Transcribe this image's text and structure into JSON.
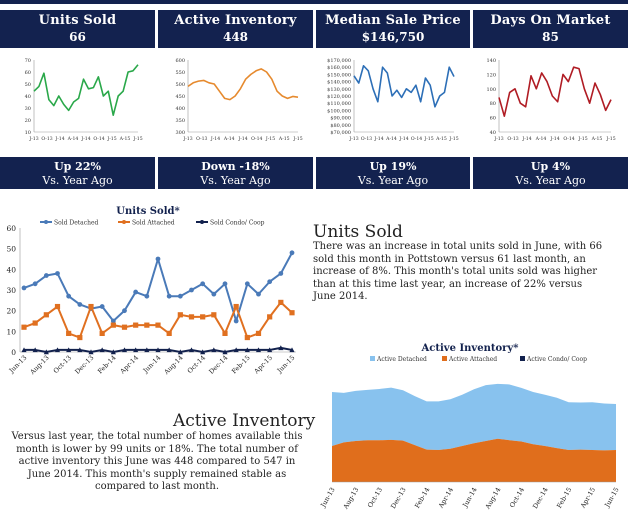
{
  "stats": [
    {
      "title": "Units Sold",
      "value": "66",
      "change": "Up  22%",
      "vs": "Vs. Year Ago"
    },
    {
      "title": "Active Inventory",
      "value": "448",
      "change": "Down  -18%",
      "vs": "Vs. Year Ago"
    },
    {
      "title": "Median Sale Price",
      "value": "$146,750",
      "change": "Up  19%",
      "vs": "Vs. Year Ago"
    },
    {
      "title": "Days On Market",
      "value": "85",
      "change": "Up  4%",
      "vs": "Vs. Year Ago"
    }
  ],
  "sections": {
    "units_heading": "Units Sold",
    "units_text": "There was  an increase in total units sold in June, with 66 sold this month in Pottstown versus 61 last month, an increase of 8%. This month's total units sold was higher than at this time last year, an increase of 22% versus June 2014.",
    "inventory_heading": "Active Inventory",
    "inventory_text": "Versus last year, the total number of homes available this month is lower by 99 units or 18%. The total number of active inventory this June was 448 compared to  547 in June 2014. This month's supply remained stable as compared to last month."
  },
  "chart_data": [
    {
      "type": "line",
      "title": "",
      "color": "#2aa84a",
      "ylim": [
        10,
        70
      ],
      "yticks": [
        10,
        20,
        30,
        40,
        50,
        60,
        70
      ],
      "xticks": [
        "J-13",
        "O-13",
        "J-14",
        "A-14",
        "J-14",
        "O-14",
        "J-15",
        "A-15",
        "J-15"
      ],
      "values": [
        44,
        48,
        59,
        37,
        32,
        40,
        33,
        28,
        35,
        38,
        54,
        46,
        47,
        56,
        40,
        44,
        24,
        40,
        44,
        60,
        61,
        66
      ]
    },
    {
      "type": "line",
      "title": "",
      "color": "#e68a2e",
      "ylim": [
        300,
        600
      ],
      "yticks": [
        300,
        350,
        400,
        450,
        500,
        550,
        600
      ],
      "xticks": [
        "J-13",
        "O-13",
        "J-14",
        "A-14",
        "J-14",
        "O-14",
        "J-15",
        "A-15",
        "J-15"
      ],
      "values": [
        490,
        505,
        512,
        515,
        505,
        500,
        470,
        440,
        435,
        450,
        480,
        520,
        540,
        555,
        563,
        550,
        520,
        470,
        450,
        440,
        448,
        445
      ]
    },
    {
      "type": "line",
      "title": "",
      "color": "#2d6fb7",
      "ylim": [
        70000,
        170000
      ],
      "yticks": [
        "$70,000",
        "$80,000",
        "$90,000",
        "$100,000",
        "$110,000",
        "$120,000",
        "$130,000",
        "$140,000",
        "$150,000",
        "$160,000",
        "$170,000"
      ],
      "xticks": [
        "J-13",
        "O-13",
        "J-14",
        "A-14",
        "J-14",
        "O-14",
        "J-15",
        "A-15",
        "J-15"
      ],
      "values": [
        148,
        138,
        162,
        155,
        130,
        112,
        160,
        152,
        120,
        128,
        118,
        130,
        125,
        135,
        112,
        145,
        135,
        105,
        120,
        125,
        160,
        147
      ]
    },
    {
      "type": "line",
      "title": "",
      "color": "#b01c24",
      "ylim": [
        40,
        140
      ],
      "yticks": [
        40,
        60,
        80,
        100,
        120,
        140
      ],
      "xticks": [
        "J-13",
        "O-13",
        "J-14",
        "A-14",
        "J-14",
        "O-14",
        "J-15",
        "A-15",
        "J-15"
      ],
      "values": [
        88,
        62,
        95,
        100,
        80,
        75,
        118,
        100,
        122,
        110,
        90,
        82,
        120,
        110,
        130,
        128,
        100,
        80,
        108,
        92,
        70,
        85
      ]
    },
    {
      "type": "line",
      "title": "Units Sold*",
      "ylim": [
        0,
        60
      ],
      "yticks": [
        0,
        10,
        20,
        30,
        40,
        50,
        60
      ],
      "xticks": [
        "Jun-13",
        "Aug-13",
        "Oct-13",
        "Dec-13",
        "Feb-14",
        "Apr-14",
        "Jun-14",
        "Aug-14",
        "Oct-14",
        "Dec-14",
        "Feb-15",
        "Apr-15",
        "Jun-15"
      ],
      "series": [
        {
          "name": "Sold Detached",
          "color": "#4a7ab8",
          "values": [
            31,
            33,
            37,
            38,
            27,
            23,
            21,
            22,
            15,
            20,
            29,
            27,
            45,
            27,
            27,
            30,
            33,
            28,
            33,
            15,
            33,
            28,
            34,
            38,
            48
          ]
        },
        {
          "name": "Sold Attached",
          "color": "#e07020",
          "values": [
            12,
            14,
            18,
            22,
            9,
            7,
            22,
            9,
            13,
            12,
            13,
            13,
            13,
            9,
            18,
            17,
            17,
            18,
            9,
            22,
            7,
            9,
            17,
            24,
            19
          ]
        },
        {
          "name": "Sold Condo/ Coop",
          "color": "#12214d",
          "values": [
            1,
            1,
            0,
            1,
            1,
            1,
            0,
            1,
            0,
            1,
            1,
            1,
            1,
            1,
            0,
            1,
            0,
            1,
            0,
            1,
            1,
            1,
            1,
            2,
            1
          ]
        }
      ]
    },
    {
      "type": "area",
      "title": "Active Inventory*",
      "ylim": [
        0,
        600
      ],
      "xticks": [
        "Jun-13",
        "Aug-13",
        "Oct-13",
        "Dec-13",
        "Feb-14",
        "Apr-14",
        "Jun-14",
        "Aug-14",
        "Oct-14",
        "Dec-14",
        "Feb-15",
        "Apr-15",
        "Jun-15"
      ],
      "series": [
        {
          "name": "Active Detached",
          "color": "#88c2ee",
          "values": [
            300,
            275,
            278,
            280,
            285,
            290,
            280,
            272,
            268,
            270,
            275,
            285,
            300,
            310,
            305,
            310,
            298,
            290,
            285,
            280,
            265,
            262,
            265,
            260,
            255
          ]
        },
        {
          "name": "Active Attached",
          "color": "#e06e1c",
          "values": [
            200,
            220,
            228,
            232,
            232,
            234,
            230,
            205,
            180,
            178,
            185,
            200,
            215,
            228,
            240,
            232,
            225,
            210,
            200,
            188,
            178,
            180,
            178,
            176,
            178
          ]
        },
        {
          "name": "Active Condo/ Coop",
          "color": "#12214d",
          "values": [
            0,
            0,
            0,
            0,
            0,
            0,
            0,
            0,
            0,
            0,
            0,
            0,
            0,
            0,
            0,
            0,
            0,
            0,
            0,
            0,
            0,
            0,
            0,
            0,
            0
          ]
        }
      ]
    }
  ]
}
